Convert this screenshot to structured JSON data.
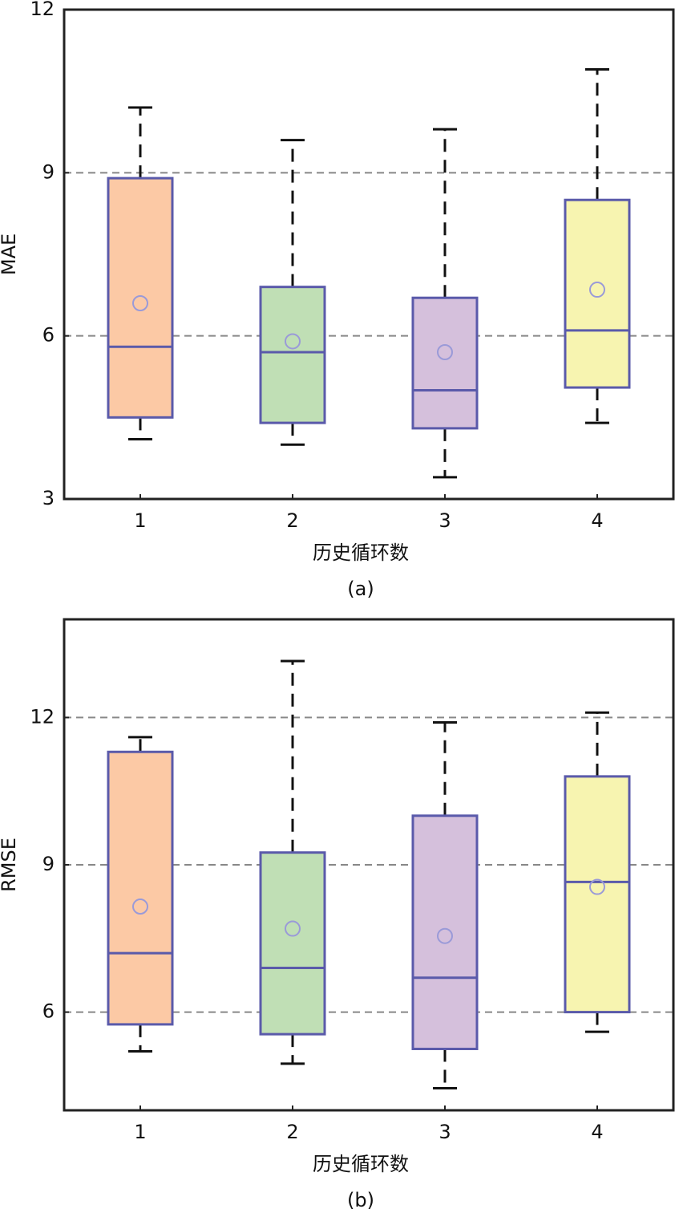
{
  "chart_data": [
    {
      "type": "box",
      "ylabel": "MAE",
      "xlabel": "历史循环数",
      "caption": "(a)",
      "categories": [
        "1",
        "2",
        "3",
        "4"
      ],
      "colors": [
        "#fcc9a5",
        "#c0dfb5",
        "#d5c0dc",
        "#f7f4b0"
      ],
      "boxes": [
        {
          "whislo": 4.1,
          "q1": 4.5,
          "med": 5.8,
          "q3": 8.9,
          "whishi": 10.2,
          "mean": 6.6
        },
        {
          "whislo": 4.0,
          "q1": 4.4,
          "med": 5.7,
          "q3": 6.9,
          "whishi": 9.6,
          "mean": 5.9
        },
        {
          "whislo": 3.4,
          "q1": 4.3,
          "med": 5.0,
          "q3": 6.7,
          "whishi": 9.8,
          "mean": 5.7
        },
        {
          "whislo": 4.4,
          "q1": 5.05,
          "med": 6.1,
          "q3": 8.5,
          "whishi": 10.9,
          "mean": 6.85
        }
      ],
      "ylim": [
        3,
        12
      ],
      "yticks": [
        3,
        6,
        9,
        12
      ],
      "grid": true
    },
    {
      "type": "box",
      "ylabel": "RMSE",
      "xlabel": "历史循环数",
      "caption": "(b)",
      "categories": [
        "1",
        "2",
        "3",
        "4"
      ],
      "colors": [
        "#fcc9a5",
        "#c0dfb5",
        "#d5c0dc",
        "#f7f4b0"
      ],
      "boxes": [
        {
          "whislo": 5.2,
          "q1": 5.75,
          "med": 7.2,
          "q3": 11.3,
          "whishi": 11.6,
          "mean": 8.15
        },
        {
          "whislo": 4.95,
          "q1": 5.55,
          "med": 6.9,
          "q3": 9.25,
          "whishi": 13.15,
          "mean": 7.7
        },
        {
          "whislo": 4.45,
          "q1": 5.25,
          "med": 6.7,
          "q3": 10.0,
          "whishi": 11.9,
          "mean": 7.55
        },
        {
          "whislo": 5.6,
          "q1": 6.0,
          "med": 8.65,
          "q3": 10.8,
          "whishi": 12.1,
          "mean": 8.55
        }
      ],
      "ylim": [
        4,
        14
      ],
      "yticks": [
        6,
        9,
        12
      ],
      "grid": true
    }
  ]
}
